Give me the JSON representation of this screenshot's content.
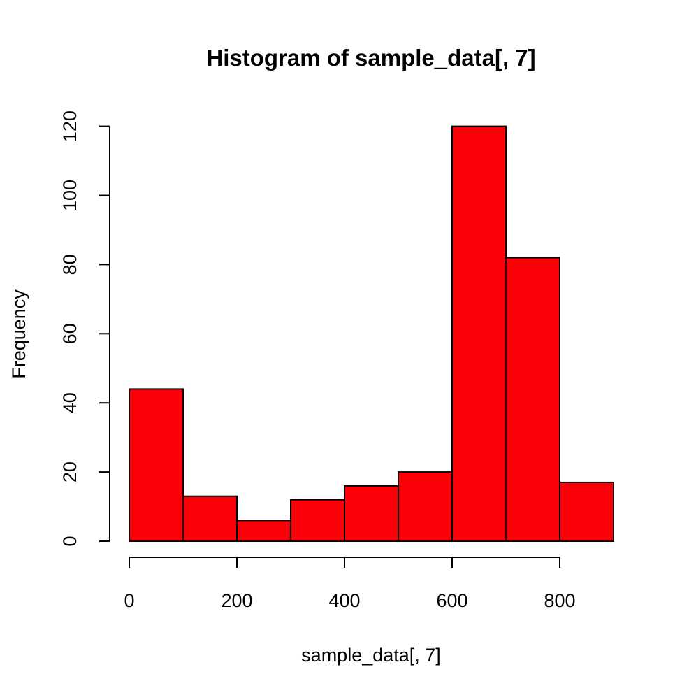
{
  "chart_data": {
    "type": "bar",
    "subtype": "histogram",
    "title": "Histogram of sample_data[, 7]",
    "xlabel": "sample_data[, 7]",
    "ylabel": "Frequency",
    "bins": [
      {
        "start": 0,
        "end": 100,
        "count": 44
      },
      {
        "start": 100,
        "end": 200,
        "count": 13
      },
      {
        "start": 200,
        "end": 300,
        "count": 6
      },
      {
        "start": 300,
        "end": 400,
        "count": 12
      },
      {
        "start": 400,
        "end": 500,
        "count": 16
      },
      {
        "start": 500,
        "end": 600,
        "count": 20
      },
      {
        "start": 600,
        "end": 700,
        "count": 120
      },
      {
        "start": 700,
        "end": 800,
        "count": 82
      },
      {
        "start": 800,
        "end": 900,
        "count": 17
      }
    ],
    "x_ticks": [
      0,
      200,
      400,
      600,
      800
    ],
    "y_ticks": [
      0,
      20,
      40,
      60,
      80,
      100,
      120
    ],
    "x_tick_labels": [
      "0",
      "200",
      "400",
      "600",
      "800"
    ],
    "y_tick_labels": [
      "0",
      "20",
      "40",
      "60",
      "80",
      "100",
      "120"
    ],
    "xlim": [
      0,
      900
    ],
    "ylim": [
      0,
      120
    ],
    "bar_color": "#fb0007",
    "edge_color": "#000000",
    "grid": false
  }
}
